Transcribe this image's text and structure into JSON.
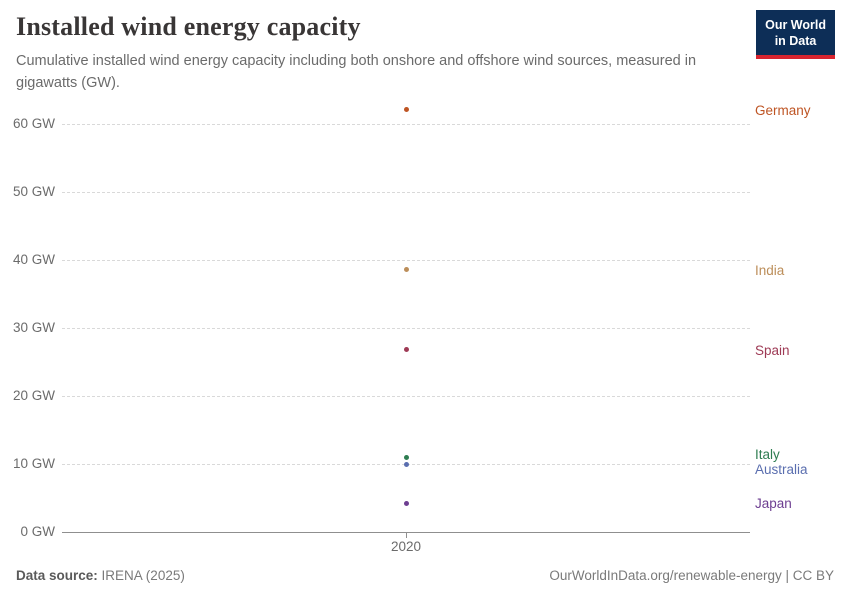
{
  "header": {
    "title": "Installed wind energy capacity",
    "subtitle": "Cumulative installed wind energy capacity including both onshore and offshore wind sources, measured in gigawatts (GW).",
    "logo": {
      "line1": "Our World",
      "line2": "in Data",
      "bg": "#0d2e57",
      "accent": "#d8242f"
    }
  },
  "chart_data": {
    "type": "scatter",
    "title": "Installed wind energy capacity",
    "xlabel": "",
    "ylabel": "",
    "x": [
      2020
    ],
    "series": [
      {
        "name": "Germany",
        "value": 62.2,
        "color": "#be5423",
        "label_dy": 2
      },
      {
        "name": "India",
        "value": 38.6,
        "color": "#bc8e5a",
        "label_dy": 1
      },
      {
        "name": "Spain",
        "value": 26.8,
        "color": "#9e3a55",
        "label_dy": 1
      },
      {
        "name": "Italy",
        "value": 11.0,
        "color": "#2e7d51",
        "label_dy": -2
      },
      {
        "name": "Australia",
        "value": 10.0,
        "color": "#5a6eaf",
        "label_dy": 6
      },
      {
        "name": "Japan",
        "value": 4.2,
        "color": "#6d3e91",
        "label_dy": 1
      }
    ],
    "x_axis": {
      "tick_label": "2020"
    },
    "y_axis": {
      "unit": "GW",
      "ticks": [
        {
          "value": 60,
          "label": "60 GW"
        },
        {
          "value": 50,
          "label": "50 GW"
        },
        {
          "value": 40,
          "label": "40 GW"
        },
        {
          "value": 30,
          "label": "30 GW"
        },
        {
          "value": 20,
          "label": "20 GW"
        },
        {
          "value": 10,
          "label": "10 GW"
        },
        {
          "value": 0,
          "label": "0 GW"
        }
      ]
    },
    "ylim": [
      0,
      63.5
    ],
    "grid": "horizontal-dashed",
    "legend_position": "right-labels"
  },
  "footer": {
    "source_label": "Data source:",
    "source_value": "IRENA (2025)",
    "credit": "OurWorldInData.org/renewable-energy | CC BY"
  }
}
